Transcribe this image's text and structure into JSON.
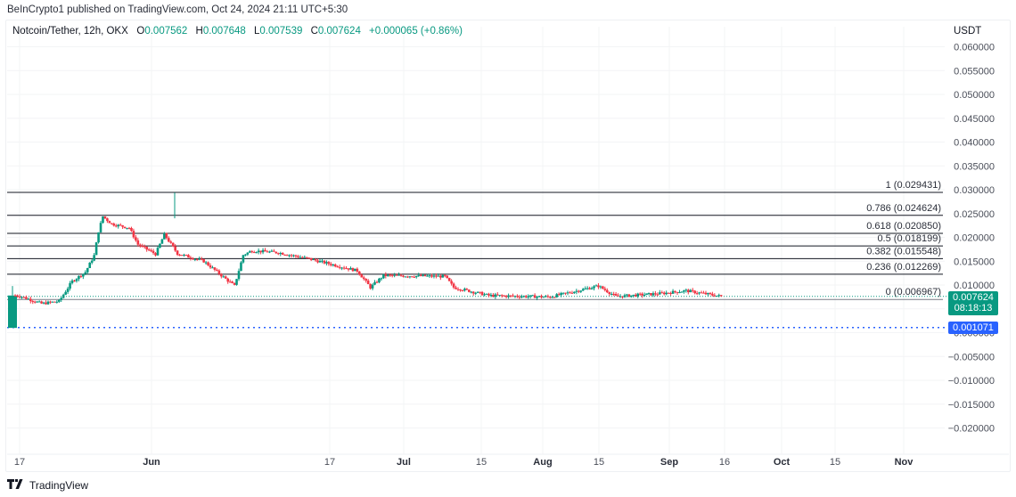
{
  "header": {
    "published_line": "BeInCrypto1 published on TradingView.com, Oct 24, 2024 21:11 UTC+5:30"
  },
  "legend": {
    "symbol": "Notcoin/Tether, 12h, OKX",
    "open_label": "O",
    "open": "0.007562",
    "high_label": "H",
    "high": "0.007648",
    "low_label": "L",
    "low": "0.007539",
    "close_label": "C",
    "close": "0.007624",
    "change": "+0.000065 (+0.86%)"
  },
  "price_axis": {
    "currency": "USDT",
    "current_price": "0.007624",
    "countdown": "08:18:13",
    "line_price": "0.001071"
  },
  "footer": {
    "brand": "TradingView"
  },
  "colors": {
    "up": "#089981",
    "down": "#f23645",
    "line_label": "#2962ff",
    "fib_line": "#131722"
  },
  "chart_data": {
    "type": "candlestick",
    "title": "Notcoin/Tether, 12h, OKX",
    "xlabel": "",
    "ylabel": "USDT",
    "ylim": [
      -0.0225,
      0.0625
    ],
    "grid": true,
    "y_ticks": [
      "0.060000",
      "0.055000",
      "0.050000",
      "0.045000",
      "0.040000",
      "0.035000",
      "0.030000",
      "0.025000",
      "0.020000",
      "0.015000",
      "0.010000",
      "0.005000",
      "0.000000",
      "-0.005000",
      "-0.010000",
      "-0.015000",
      "-0.020000"
    ],
    "x_ticks": [
      {
        "label": "17",
        "major": false
      },
      {
        "label": "Jun",
        "major": true
      },
      {
        "label": "17",
        "major": false
      },
      {
        "label": "Jul",
        "major": true
      },
      {
        "label": "15",
        "major": false
      },
      {
        "label": "Aug",
        "major": true
      },
      {
        "label": "15",
        "major": false
      },
      {
        "label": "Sep",
        "major": true
      },
      {
        "label": "16",
        "major": false
      },
      {
        "label": "Oct",
        "major": true
      },
      {
        "label": "15",
        "major": false
      },
      {
        "label": "Nov",
        "major": true
      }
    ],
    "fibonacci": [
      {
        "level": "1",
        "price": 0.029431,
        "label": "1 (0.029431)"
      },
      {
        "level": "0.786",
        "price": 0.024624,
        "label": "0.786 (0.024624)"
      },
      {
        "level": "0.618",
        "price": 0.02085,
        "label": "0.618 (0.020850)"
      },
      {
        "level": "0.5",
        "price": 0.018199,
        "label": "0.5 (0.018199)"
      },
      {
        "level": "0.382",
        "price": 0.015548,
        "label": "0.382 (0.015548)"
      },
      {
        "level": "0.236",
        "price": 0.012269,
        "label": "0.236 (0.012269)"
      },
      {
        "level": "0",
        "price": 0.006967,
        "label": "0 (0.006967)"
      }
    ],
    "horizontal_line": {
      "price": 0.001071,
      "style": "dotted",
      "color": "#2962ff"
    },
    "last_price": 0.007624,
    "approx_close_path": [
      {
        "date": "May 16",
        "close": 0.0078
      },
      {
        "date": "May 17",
        "close": 0.0077
      },
      {
        "date": "May 22",
        "close": 0.0061
      },
      {
        "date": "May 26",
        "close": 0.0066
      },
      {
        "date": "May 29",
        "close": 0.0108
      },
      {
        "date": "Jun 1",
        "close": 0.0127
      },
      {
        "date": "Jun 3",
        "close": 0.0162
      },
      {
        "date": "Jun 4",
        "close": 0.0213
      },
      {
        "date": "Jun 5",
        "close": 0.0244
      },
      {
        "date": "Jun 7",
        "close": 0.0228
      },
      {
        "date": "Jun 11",
        "close": 0.022
      },
      {
        "date": "Jun 13",
        "close": 0.0185
      },
      {
        "date": "Jun 17",
        "close": 0.0165
      },
      {
        "date": "Jun 19",
        "close": 0.0206
      },
      {
        "date": "Jun 22",
        "close": 0.0166
      },
      {
        "date": "Jun 28",
        "close": 0.015
      },
      {
        "date": "Jul 5",
        "close": 0.0098
      },
      {
        "date": "Jul 7",
        "close": 0.0163
      },
      {
        "date": "Jul 9",
        "close": 0.0172
      },
      {
        "date": "Jul 15",
        "close": 0.0168
      },
      {
        "date": "Jul 22",
        "close": 0.0155
      },
      {
        "date": "Aug 2",
        "close": 0.013
      },
      {
        "date": "Aug 5",
        "close": 0.0095
      },
      {
        "date": "Aug 8",
        "close": 0.012
      },
      {
        "date": "Aug 22",
        "close": 0.0118
      },
      {
        "date": "Aug 24",
        "close": 0.0095
      },
      {
        "date": "Sep 1",
        "close": 0.0078
      },
      {
        "date": "Sep 15",
        "close": 0.0075
      },
      {
        "date": "Sep 26",
        "close": 0.0098
      },
      {
        "date": "Sep 30",
        "close": 0.0076
      },
      {
        "date": "Oct 10",
        "close": 0.0082
      },
      {
        "date": "Oct 16",
        "close": 0.0088
      },
      {
        "date": "Oct 24",
        "close": 0.007624
      }
    ]
  }
}
